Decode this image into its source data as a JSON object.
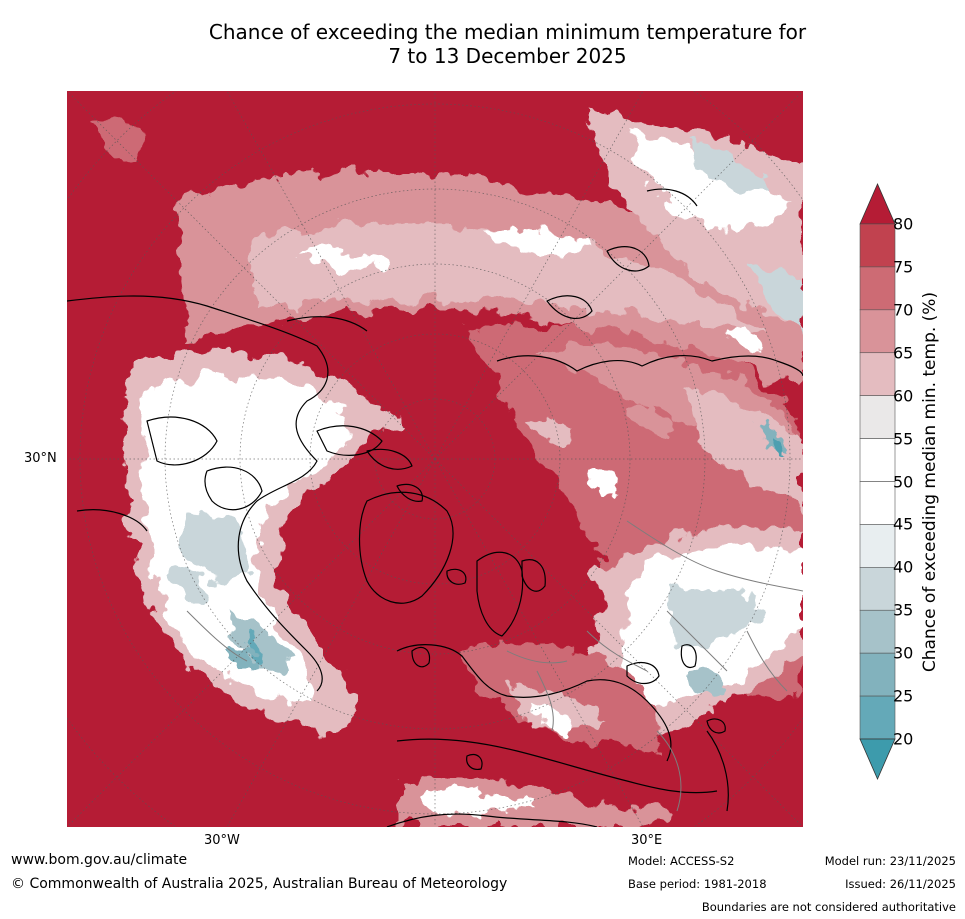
{
  "title": {
    "line1": "Chance of exceeding the median minimum temperature for",
    "line2": "7 to 13 December 2025"
  },
  "map": {
    "lat_label": "30°N",
    "lon_labels": [
      "30°W",
      "30°E"
    ],
    "projection": "north polar stereographic",
    "dominant_category_pct": 80
  },
  "colorbar": {
    "label": "Chance of exceeding median min. temp. (%)",
    "ticks": [
      "80",
      "75",
      "70",
      "65",
      "60",
      "55",
      "50",
      "45",
      "40",
      "35",
      "30",
      "25",
      "20"
    ],
    "colors": [
      "#b51c35",
      "#c1424f",
      "#cd6b74",
      "#d99399",
      "#e4bcc0",
      "#eae8e8",
      "#ffffff",
      "#ffffff",
      "#e8eef0",
      "#c9d6da",
      "#a6c2c9",
      "#82b2bd",
      "#64a9b8",
      "#4d9fb0"
    ],
    "top_arrow_color": "#b51c35",
    "bottom_arrow_color": "#3d9bac"
  },
  "footer": {
    "website": "www.bom.gov.au/climate",
    "copyright": "© Commonwealth of Australia 2025, Australian Bureau of Meteorology",
    "model": "Model: ACCESS-S2",
    "base_period": "Base period: 1981-2018",
    "model_run": "Model run: 23/11/2025",
    "issued": "Issued: 26/11/2025",
    "disclaimer": "Boundaries are not considered authoritative"
  }
}
